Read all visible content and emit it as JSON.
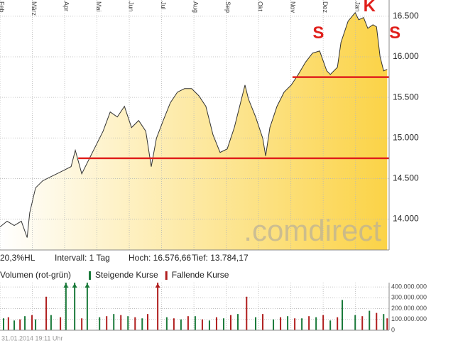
{
  "chart_data": [
    {
      "type": "area",
      "color": "#fbd347",
      "line_color": "#333333",
      "xlim": [
        0,
        12.04
      ],
      "ylim": [
        13620,
        16700
      ],
      "xticks": [
        {
          "value": 0,
          "label": "Feb"
        },
        {
          "value": 1,
          "label": "März"
        },
        {
          "value": 2,
          "label": "Apr"
        },
        {
          "value": 3,
          "label": "Mai"
        },
        {
          "value": 4,
          "label": "Jun"
        },
        {
          "value": 5,
          "label": "Jul"
        },
        {
          "value": 6,
          "label": "Aug"
        },
        {
          "value": 7,
          "label": "Sep"
        },
        {
          "value": 8,
          "label": "Okt"
        },
        {
          "value": 9,
          "label": "Nov"
        },
        {
          "value": 10,
          "label": "Dez"
        },
        {
          "value": 11,
          "label": "Jan"
        }
      ],
      "yticks": [
        {
          "value": 14000,
          "label": "14.000"
        },
        {
          "value": 14500,
          "label": "14.500"
        },
        {
          "value": 15000,
          "label": "15.000"
        },
        {
          "value": 15500,
          "label": "15.500"
        },
        {
          "value": 16000,
          "label": "16.000"
        },
        {
          "value": 16500,
          "label": "16.500"
        }
      ],
      "grid": true,
      "x": [
        0,
        0.22,
        0.44,
        0.66,
        0.84,
        0.92,
        1.1,
        1.32,
        1.54,
        1.76,
        1.98,
        2.2,
        2.33,
        2.53,
        2.75,
        2.97,
        3.19,
        3.41,
        3.63,
        3.85,
        4.07,
        4.29,
        4.51,
        4.68,
        4.84,
        5.05,
        5.27,
        5.49,
        5.71,
        5.93,
        6.15,
        6.37,
        6.59,
        6.81,
        7.03,
        7.25,
        7.47,
        7.58,
        7.69,
        7.91,
        8.13,
        8.22,
        8.35,
        8.57,
        8.79,
        9.01,
        9.23,
        9.45,
        9.67,
        9.89,
        10.11,
        10.22,
        10.44,
        10.55,
        10.77,
        10.99,
        11.1,
        11.25,
        11.38,
        11.54,
        11.65,
        11.76,
        11.87,
        11.98
      ],
      "values": [
        13904,
        13974,
        13921,
        13974,
        13773,
        14079,
        14385,
        14472,
        14516,
        14559,
        14603,
        14647,
        14848,
        14559,
        14734,
        14909,
        15084,
        15320,
        15259,
        15390,
        15128,
        15215,
        15084,
        14647,
        14996,
        15215,
        15434,
        15565,
        15608,
        15608,
        15521,
        15390,
        15040,
        14822,
        14865,
        15128,
        15477,
        15652,
        15477,
        15259,
        14996,
        14778,
        15128,
        15390,
        15565,
        15652,
        15783,
        15932,
        16045,
        16072,
        15827,
        15783,
        15871,
        16177,
        16439,
        16544,
        16456,
        16484,
        16351,
        16395,
        16369,
        16002,
        15827,
        15845
      ],
      "hlines": [
        {
          "value": 14750,
          "from": 2.42,
          "color": "#e0201c"
        },
        {
          "value": 15750,
          "from": 9.05,
          "color": "#e0201c"
        }
      ],
      "annotations": [
        {
          "text": "S",
          "x": 9.85,
          "y": 16281
        },
        {
          "text": "K",
          "x": 11.43,
          "y": 16614
        },
        {
          "text": "S",
          "x": 12.22,
          "y": 16281
        }
      ],
      "watermark": ".comdirect",
      "stats": [
        "20,3%HL",
        "Intervall: 1 Tag",
        "Hoch: 16.576,66",
        "Tief: 13.784,17"
      ]
    },
    {
      "type": "bar",
      "title": "Volumen (rot-grün)",
      "xlim": [
        0,
        12.04
      ],
      "ylim": [
        0,
        440000000
      ],
      "yticks": [
        {
          "value": 0,
          "label": "0"
        },
        {
          "value": 100000000,
          "label": "100.000.000"
        },
        {
          "value": 200000000,
          "label": "200.000.000"
        },
        {
          "value": 300000000,
          "label": "300.000.000"
        },
        {
          "value": 400000000,
          "label": "400.000.000"
        }
      ],
      "series": [
        {
          "name": "Steigende Kurse",
          "color": "#1a7a3a",
          "x": [
            0.11,
            0.44,
            0.77,
            1.1,
            1.58,
            2.04,
            2.31,
            2.7,
            3.08,
            3.52,
            3.96,
            4.4,
            5.16,
            5.6,
            6.04,
            6.48,
            6.92,
            7.36,
            7.91,
            8.46,
            8.9,
            9.34,
            9.78,
            10.22,
            10.59,
            10.99,
            11.43,
            11.87
          ],
          "values": [
            110000000,
            90000000,
            130000000,
            100000000,
            140000000,
            450000000,
            450000000,
            450000000,
            120000000,
            150000000,
            130000000,
            110000000,
            120000000,
            100000000,
            130000000,
            90000000,
            110000000,
            150000000,
            120000000,
            100000000,
            130000000,
            110000000,
            120000000,
            90000000,
            280000000,
            140000000,
            180000000,
            150000000
          ]
        },
        {
          "name": "Fallende Kurse",
          "color": "#b01e1e",
          "x": [
            0.26,
            0.62,
            0.99,
            1.43,
            1.87,
            2.53,
            3.3,
            3.74,
            4.18,
            4.57,
            4.88,
            5.38,
            5.82,
            6.26,
            6.7,
            7.14,
            7.63,
            8.13,
            8.68,
            9.12,
            9.56,
            10.0,
            10.44,
            11.21,
            11.65,
            11.98
          ],
          "values": [
            120000000,
            100000000,
            140000000,
            310000000,
            120000000,
            110000000,
            130000000,
            140000000,
            120000000,
            150000000,
            450000000,
            110000000,
            130000000,
            100000000,
            120000000,
            140000000,
            310000000,
            150000000,
            120000000,
            110000000,
            130000000,
            140000000,
            120000000,
            130000000,
            160000000,
            110000000
          ]
        }
      ]
    }
  ],
  "footer": "31.01.2014 19:11 Uhr"
}
